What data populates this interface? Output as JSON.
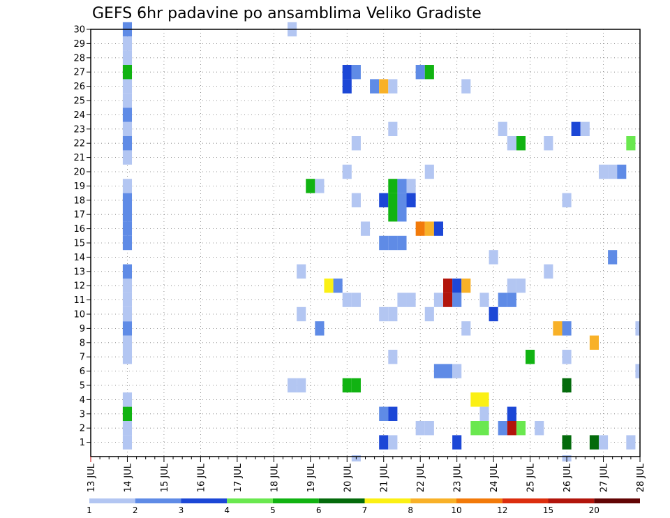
{
  "chart_data": {
    "type": "heatmap",
    "title": "GEFS 6hr padavine po ansamblima Veliko Gradiste",
    "xlabel": "",
    "ylabel": "",
    "x_ticks": [
      "13 JUL",
      "14 JUL",
      "15 JUL",
      "16 JUL",
      "17 JUL",
      "18 JUL",
      "19 JUL",
      "20 JUL",
      "21 JUL",
      "22 JUL",
      "23 JUL",
      "24 JUL",
      "25 JUL",
      "26 JUL",
      "27 JUL",
      "28 JUL"
    ],
    "xlim": [
      0,
      60
    ],
    "y_ticks": [
      "1",
      "2",
      "3",
      "4",
      "5",
      "6",
      "7",
      "8",
      "9",
      "10",
      "11",
      "12",
      "13",
      "14",
      "15",
      "16",
      "17",
      "18",
      "19",
      "20",
      "21",
      "22",
      "23",
      "24",
      "25",
      "26",
      "27",
      "28",
      "29",
      "30"
    ],
    "ylim": [
      0,
      30
    ],
    "grid": true,
    "legend": {
      "placement": "bottom",
      "labels": [
        "1",
        "2",
        "3",
        "4",
        "5",
        "6",
        "7",
        "8",
        "10",
        "12",
        "15",
        "20"
      ],
      "colors": [
        "#b3c6f2",
        "#5f8be6",
        "#1c47d6",
        "#6ae84f",
        "#11b312",
        "#046b0c",
        "#fbf014",
        "#f8b128",
        "#f27a0a",
        "#dc2e0e",
        "#b2150c",
        "#620404"
      ]
    },
    "note_x_units": "6-hour steps from 13 JUL 00z; y = ensemble member",
    "cells": [
      [
        4,
        1,
        1
      ],
      [
        4,
        2,
        1
      ],
      [
        4,
        3,
        5
      ],
      [
        4,
        4,
        1
      ],
      [
        4,
        7,
        1
      ],
      [
        4,
        8,
        1
      ],
      [
        4,
        9,
        2
      ],
      [
        4,
        10,
        1
      ],
      [
        4,
        11,
        1
      ],
      [
        4,
        12,
        1
      ],
      [
        4,
        13,
        2
      ],
      [
        4,
        15,
        2
      ],
      [
        4,
        16,
        2
      ],
      [
        4,
        17,
        2
      ],
      [
        4,
        18,
        2
      ],
      [
        4,
        19,
        1
      ],
      [
        4,
        21,
        1
      ],
      [
        4,
        22,
        2
      ],
      [
        4,
        23,
        1
      ],
      [
        4,
        24,
        2
      ],
      [
        4,
        25,
        1
      ],
      [
        4,
        26,
        1
      ],
      [
        4,
        27,
        5
      ],
      [
        4,
        28,
        1
      ],
      [
        4,
        29,
        1
      ],
      [
        4,
        30,
        2
      ],
      [
        22,
        30,
        1
      ],
      [
        22,
        5,
        1
      ],
      [
        23,
        5,
        1
      ],
      [
        23,
        13,
        1
      ],
      [
        23,
        10,
        1
      ],
      [
        24,
        19,
        5
      ],
      [
        25,
        19,
        1
      ],
      [
        25,
        9,
        2
      ],
      [
        26,
        12,
        7
      ],
      [
        27,
        12,
        2
      ],
      [
        28,
        27,
        3
      ],
      [
        28,
        26,
        3
      ],
      [
        28,
        20,
        1
      ],
      [
        28,
        11,
        1
      ],
      [
        28,
        5,
        5
      ],
      [
        29,
        5,
        5
      ],
      [
        29,
        27,
        2
      ],
      [
        29,
        22,
        1
      ],
      [
        29,
        18,
        1
      ],
      [
        29,
        11,
        1
      ],
      [
        29,
        0,
        1
      ],
      [
        30,
        16,
        1
      ],
      [
        31,
        26,
        2
      ],
      [
        32,
        26,
        8
      ],
      [
        32,
        18,
        3
      ],
      [
        32,
        15,
        2
      ],
      [
        32,
        10,
        1
      ],
      [
        32,
        3,
        2
      ],
      [
        32,
        1,
        3
      ],
      [
        33,
        26,
        1
      ],
      [
        33,
        23,
        1
      ],
      [
        33,
        19,
        5
      ],
      [
        33,
        18,
        5
      ],
      [
        33,
        17,
        5
      ],
      [
        33,
        15,
        2
      ],
      [
        33,
        10,
        1
      ],
      [
        33,
        7,
        1
      ],
      [
        33,
        3,
        3
      ],
      [
        33,
        1,
        1
      ],
      [
        34,
        19,
        2
      ],
      [
        34,
        18,
        2
      ],
      [
        34,
        17,
        2
      ],
      [
        34,
        15,
        2
      ],
      [
        34,
        11,
        1
      ],
      [
        35,
        19,
        1
      ],
      [
        35,
        18,
        3
      ],
      [
        35,
        11,
        1
      ],
      [
        36,
        27,
        2
      ],
      [
        36,
        16,
        10
      ],
      [
        36,
        2,
        1
      ],
      [
        37,
        27,
        5
      ],
      [
        37,
        16,
        9
      ],
      [
        37,
        20,
        1
      ],
      [
        37,
        10,
        1
      ],
      [
        37,
        2,
        1
      ],
      [
        38,
        16,
        3
      ],
      [
        38,
        11,
        1
      ],
      [
        38,
        6,
        2
      ],
      [
        39,
        12,
        15
      ],
      [
        39,
        11,
        15
      ],
      [
        39,
        6,
        2
      ],
      [
        40,
        12,
        3
      ],
      [
        40,
        11,
        2
      ],
      [
        40,
        6,
        1
      ],
      [
        40,
        1,
        3
      ],
      [
        41,
        26,
        1
      ],
      [
        41,
        12,
        8
      ],
      [
        41,
        9,
        1
      ],
      [
        42,
        4,
        7
      ],
      [
        42,
        2,
        4
      ],
      [
        43,
        4,
        7
      ],
      [
        43,
        2,
        4
      ],
      [
        43,
        11,
        1
      ],
      [
        43,
        3,
        1
      ],
      [
        44,
        14,
        1
      ],
      [
        44,
        10,
        3
      ],
      [
        45,
        23,
        1
      ],
      [
        45,
        11,
        2
      ],
      [
        45,
        2,
        2
      ],
      [
        46,
        22,
        1
      ],
      [
        46,
        12,
        1
      ],
      [
        46,
        11,
        2
      ],
      [
        46,
        3,
        3
      ],
      [
        46,
        2,
        15
      ],
      [
        47,
        22,
        5
      ],
      [
        47,
        12,
        1
      ],
      [
        47,
        2,
        4
      ],
      [
        48,
        7,
        5
      ],
      [
        49,
        2,
        1
      ],
      [
        50,
        22,
        1
      ],
      [
        50,
        13,
        1
      ],
      [
        51,
        9,
        8
      ],
      [
        52,
        18,
        1
      ],
      [
        52,
        9,
        2
      ],
      [
        52,
        7,
        1
      ],
      [
        52,
        5,
        6
      ],
      [
        52,
        1,
        6
      ],
      [
        52,
        0,
        1
      ],
      [
        53,
        23,
        3
      ],
      [
        54,
        23,
        1
      ],
      [
        55,
        8,
        8
      ],
      [
        55,
        1,
        6
      ],
      [
        56,
        20,
        1
      ],
      [
        56,
        1,
        1
      ],
      [
        57,
        20,
        1
      ],
      [
        57,
        14,
        2
      ],
      [
        58,
        20,
        2
      ],
      [
        59,
        22,
        4
      ],
      [
        59,
        1,
        1
      ],
      [
        60,
        9,
        1
      ],
      [
        60,
        6,
        1
      ]
    ]
  }
}
